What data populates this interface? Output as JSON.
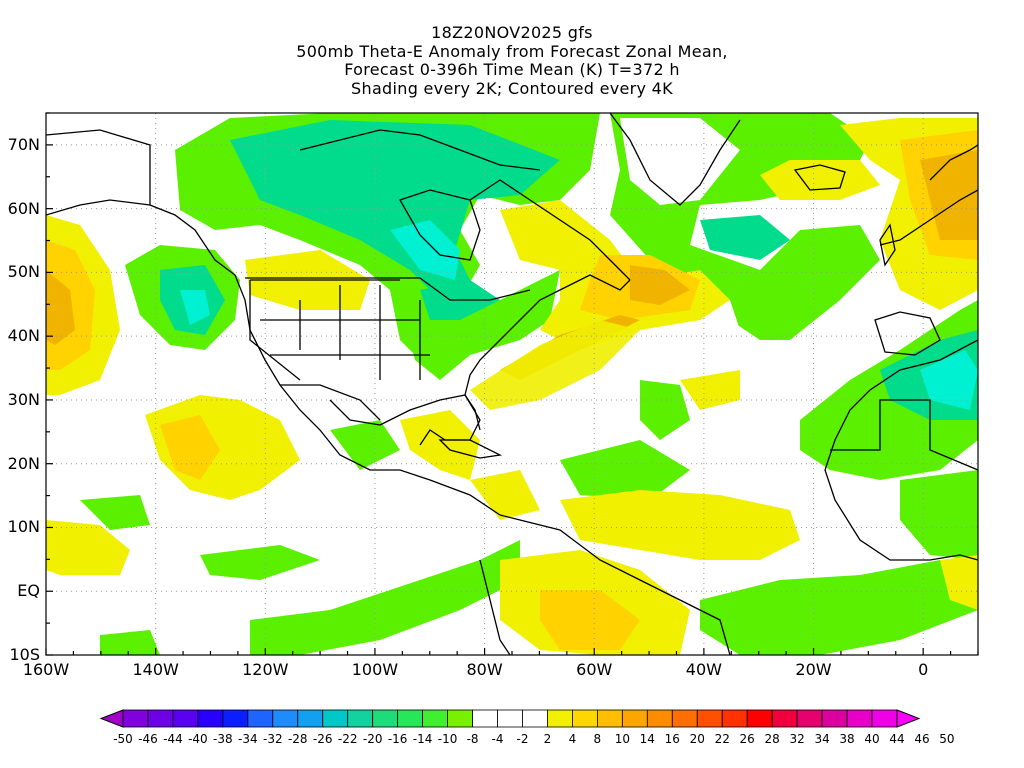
{
  "title": {
    "line1": "18Z20NOV2025 gfs",
    "line2": "500mb Theta-E Anomaly from Forecast Zonal Mean,",
    "line3": "Forecast 0-396h Time Mean (K) T=372 h",
    "line4": "Shading every 2K; Contoured every 4K"
  },
  "map": {
    "lon_range": [
      -160,
      10
    ],
    "lat_range": [
      -10,
      75
    ],
    "grid": "dotted",
    "lat_labels": [
      "70N",
      "60N",
      "50N",
      "40N",
      "30N",
      "20N",
      "10N",
      "EQ",
      "10S"
    ],
    "lon_labels": [
      "160W",
      "140W",
      "120W",
      "100W",
      "80W",
      "60W",
      "40W",
      "20W",
      "0"
    ]
  },
  "colorbar": {
    "labels": [
      "-50",
      "-46",
      "-44",
      "-40",
      "-38",
      "-34",
      "-32",
      "-28",
      "-26",
      "-22",
      "-20",
      "-16",
      "-14",
      "-10",
      "-8",
      "-4",
      "-2",
      "2",
      "4",
      "8",
      "10",
      "14",
      "16",
      "20",
      "22",
      "26",
      "28",
      "32",
      "34",
      "38",
      "40",
      "44",
      "46",
      "50"
    ],
    "colors": [
      "#a000c8",
      "#8200dc",
      "#6e00e6",
      "#5a00f0",
      "#2800ff",
      "#0a1eff",
      "#1e64ff",
      "#1e8cff",
      "#14a0f0",
      "#00c8c8",
      "#14d2a0",
      "#1edc7a",
      "#28e65a",
      "#40f030",
      "#78f000",
      "#ffffff",
      "#ffffff",
      "#ffffff",
      "#f0f000",
      "#ffd700",
      "#ffbe00",
      "#ffa500",
      "#ff8c00",
      "#ff6e00",
      "#ff5000",
      "#ff3200",
      "#ff0000",
      "#f0003c",
      "#e6006e",
      "#dc00a0",
      "#e600c8",
      "#f000e6",
      "#ff00ff"
    ]
  },
  "colors": {
    "green": "#5af000",
    "teal": "#00dc8c",
    "cyan": "#00f0d2",
    "yellow": "#f0f000",
    "gold": "#ffd200",
    "orange": "#f0b400",
    "dark_orange": "#e69628"
  }
}
